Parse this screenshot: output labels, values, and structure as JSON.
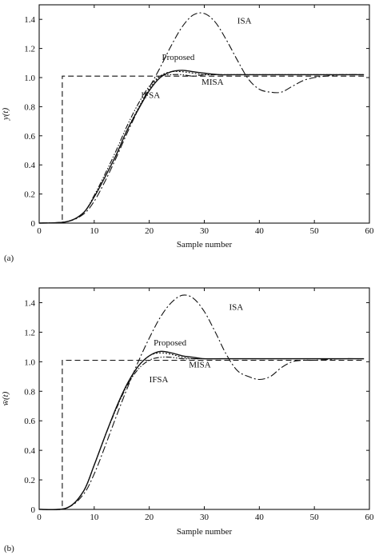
{
  "chart_data": [
    {
      "panel_label": "(a)",
      "type": "line",
      "xlabel": "Sample number",
      "ylabel": "y(t)",
      "xlim": [
        0,
        60
      ],
      "ylim": [
        0,
        1.5
      ],
      "xticks": [
        0,
        10,
        20,
        30,
        40,
        50,
        60
      ],
      "yticks": [
        0,
        0.2,
        0.4,
        0.6,
        0.8,
        1.0,
        1.2,
        1.4
      ],
      "ytick_labels": [
        "0",
        "0.2",
        "0.4",
        "0.6",
        "0.8",
        "1.0",
        "1.2",
        "1.4"
      ],
      "grid": false,
      "series": [
        {
          "name": "",
          "style": "dashed",
          "x": [
            0,
            4.2,
            4.2,
            59
          ],
          "y": [
            0,
            0,
            1.01,
            1.01
          ]
        },
        {
          "name": "ISA",
          "style": "dashdot",
          "x": [
            0,
            5,
            8,
            10,
            12,
            14,
            16,
            18,
            20,
            22,
            24,
            26,
            28,
            30,
            32,
            34,
            36,
            38,
            40,
            42,
            44,
            46,
            48,
            50,
            52,
            55,
            59
          ],
          "y": [
            0,
            0.01,
            0.06,
            0.15,
            0.29,
            0.45,
            0.62,
            0.78,
            0.93,
            1.07,
            1.22,
            1.35,
            1.43,
            1.44,
            1.38,
            1.26,
            1.12,
            0.99,
            0.92,
            0.9,
            0.9,
            0.94,
            0.98,
            1.0,
            1.01,
            1.02,
            1.02
          ]
        },
        {
          "name": "Proposed",
          "style": "solid",
          "x": [
            0,
            5,
            8,
            10,
            12,
            14,
            16,
            18,
            20,
            22,
            24,
            26,
            28,
            30,
            33,
            36,
            40,
            59
          ],
          "y": [
            0,
            0.01,
            0.07,
            0.18,
            0.32,
            0.47,
            0.64,
            0.78,
            0.91,
            1.0,
            1.04,
            1.05,
            1.04,
            1.03,
            1.02,
            1.02,
            1.02,
            1.02
          ]
        },
        {
          "name": "MISA",
          "style": "dotted",
          "x": [
            0,
            5,
            8,
            10,
            12,
            14,
            16,
            18,
            20,
            22,
            24,
            26,
            28,
            30,
            33,
            36,
            40,
            59
          ],
          "y": [
            0,
            0.01,
            0.07,
            0.18,
            0.32,
            0.47,
            0.64,
            0.79,
            0.92,
            1.01,
            1.04,
            1.04,
            1.03,
            1.02,
            1.02,
            1.02,
            1.02,
            1.02
          ]
        },
        {
          "name": "IFSA",
          "style": "dashdotdot",
          "x": [
            0,
            5,
            8,
            10,
            12,
            14,
            16,
            18,
            20,
            22,
            24,
            26,
            28,
            30,
            33,
            36,
            40,
            59
          ],
          "y": [
            0,
            0.01,
            0.07,
            0.19,
            0.34,
            0.5,
            0.67,
            0.82,
            0.94,
            1.01,
            1.02,
            1.02,
            1.01,
            1.02,
            1.02,
            1.02,
            1.02,
            1.02
          ]
        }
      ],
      "annotations": [
        {
          "text": "ISA",
          "x": 36,
          "y": 1.37
        },
        {
          "text": "Proposed",
          "x": 22.3,
          "y": 1.12
        },
        {
          "text": "MISA",
          "x": 29.5,
          "y": 0.95
        },
        {
          "text": "IFSA",
          "x": 18.5,
          "y": 0.86
        }
      ]
    },
    {
      "panel_label": "(b)",
      "type": "line",
      "xlabel": "Sample number",
      "ylabel": "w̄(t)",
      "xlim": [
        0,
        60
      ],
      "ylim": [
        0,
        1.5
      ],
      "xticks": [
        0,
        10,
        20,
        30,
        40,
        50,
        60
      ],
      "yticks": [
        0,
        0.2,
        0.4,
        0.6,
        0.8,
        1.0,
        1.2,
        1.4
      ],
      "ytick_labels": [
        "0",
        "0.2",
        "0.4",
        "0.6",
        "0.8",
        "1.0",
        "1.2",
        "1.4"
      ],
      "grid": false,
      "series": [
        {
          "name": "",
          "style": "dashed",
          "x": [
            0,
            4.2,
            4.2,
            59
          ],
          "y": [
            0,
            0,
            1.01,
            1.01
          ]
        },
        {
          "name": "ISA",
          "style": "dashdot",
          "x": [
            0,
            5,
            8,
            10,
            12,
            14,
            16,
            18,
            20,
            22,
            24,
            26,
            28,
            30,
            32,
            34,
            36,
            38,
            40,
            42,
            44,
            46,
            48,
            50,
            55,
            59
          ],
          "y": [
            0,
            0.01,
            0.1,
            0.24,
            0.43,
            0.63,
            0.82,
            1.0,
            1.16,
            1.3,
            1.4,
            1.45,
            1.43,
            1.34,
            1.2,
            1.05,
            0.94,
            0.9,
            0.88,
            0.9,
            0.96,
            1.0,
            1.01,
            1.01,
            1.02,
            1.02
          ]
        },
        {
          "name": "Proposed",
          "style": "solid",
          "x": [
            0,
            5,
            8,
            10,
            12,
            14,
            16,
            18,
            20,
            22,
            24,
            26,
            28,
            30,
            33,
            36,
            40,
            59
          ],
          "y": [
            0,
            0.01,
            0.12,
            0.3,
            0.5,
            0.69,
            0.85,
            0.97,
            1.04,
            1.07,
            1.06,
            1.04,
            1.03,
            1.02,
            1.02,
            1.02,
            1.02,
            1.02
          ]
        },
        {
          "name": "MISA",
          "style": "dotted",
          "x": [
            0,
            5,
            8,
            10,
            12,
            14,
            16,
            18,
            20,
            22,
            24,
            26,
            28,
            30,
            33,
            36,
            40,
            59
          ],
          "y": [
            0,
            0.01,
            0.12,
            0.3,
            0.5,
            0.69,
            0.85,
            0.97,
            1.04,
            1.06,
            1.05,
            1.03,
            1.02,
            1.02,
            1.02,
            1.02,
            1.02,
            1.02
          ]
        },
        {
          "name": "IFSA",
          "style": "dashdotdot",
          "x": [
            0,
            5,
            8,
            10,
            12,
            14,
            16,
            18,
            20,
            22,
            24,
            26,
            28,
            30,
            33,
            36,
            40,
            59
          ],
          "y": [
            0,
            0.01,
            0.12,
            0.3,
            0.5,
            0.68,
            0.84,
            0.95,
            1.01,
            1.03,
            1.03,
            1.02,
            1.02,
            1.02,
            1.02,
            1.02,
            1.02,
            1.02
          ]
        }
      ],
      "annotations": [
        {
          "text": "ISA",
          "x": 34.5,
          "y": 1.35
        },
        {
          "text": "Proposed",
          "x": 20.8,
          "y": 1.11
        },
        {
          "text": "MISA",
          "x": 27.2,
          "y": 0.96
        },
        {
          "text": "IFSA",
          "x": 20,
          "y": 0.86
        }
      ]
    }
  ],
  "colors": {
    "ink": "#111111",
    "background": "#ffffff"
  }
}
